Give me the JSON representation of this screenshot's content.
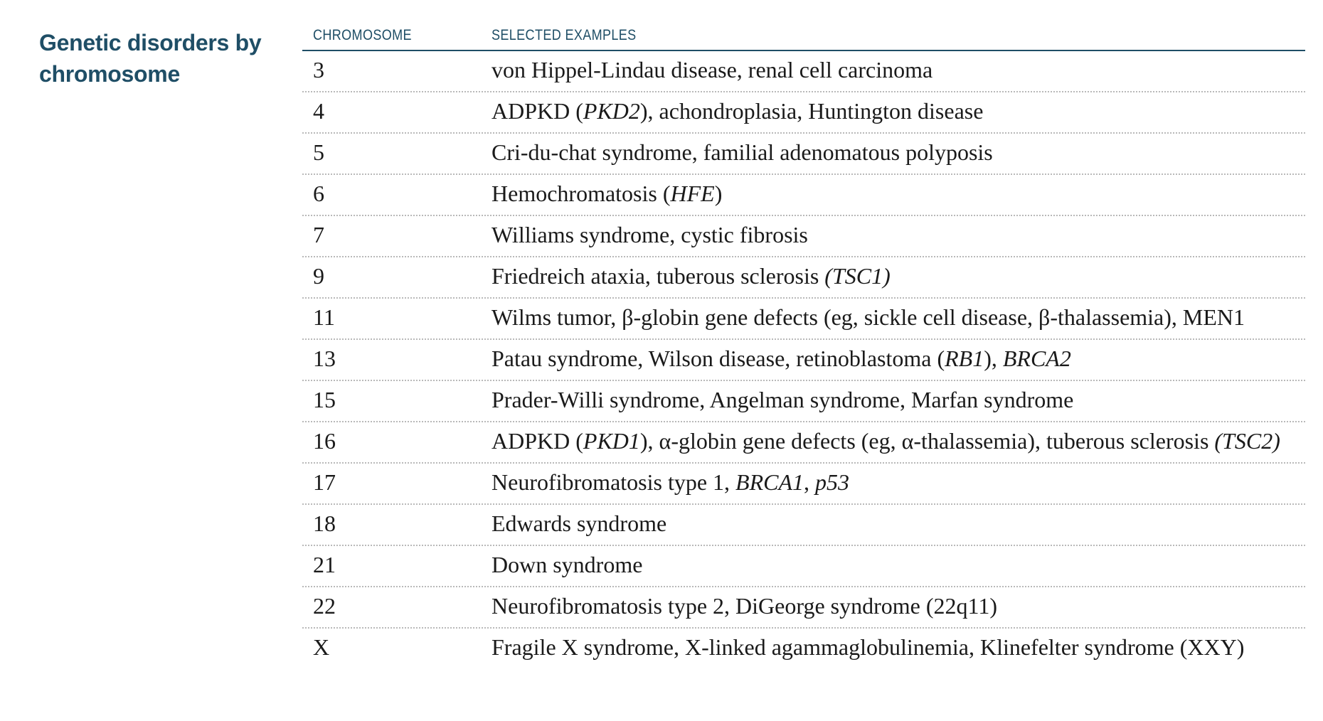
{
  "title": "Genetic disorders by chromosome",
  "headers": {
    "chromosome": "CHROMOSOME",
    "examples": "SELECTED EXAMPLES"
  },
  "rows": [
    {
      "chromosome": "3",
      "parts": [
        {
          "t": "von Hippel-Lindau disease, renal cell carcinoma"
        }
      ]
    },
    {
      "chromosome": "4",
      "parts": [
        {
          "t": "ADPKD ("
        },
        {
          "t": "PKD2",
          "i": true
        },
        {
          "t": "), achondroplasia, Huntington disease"
        }
      ]
    },
    {
      "chromosome": "5",
      "parts": [
        {
          "t": "Cri-du-chat syndrome, familial adenomatous polyposis"
        }
      ]
    },
    {
      "chromosome": "6",
      "parts": [
        {
          "t": "Hemochromatosis ("
        },
        {
          "t": "HFE",
          "i": true
        },
        {
          "t": ")"
        }
      ]
    },
    {
      "chromosome": "7",
      "parts": [
        {
          "t": "Williams syndrome, cystic fibrosis"
        }
      ]
    },
    {
      "chromosome": "9",
      "parts": [
        {
          "t": "Friedreich ataxia, tuberous sclerosis "
        },
        {
          "t": "(TSC1)",
          "i": true
        }
      ]
    },
    {
      "chromosome": "11",
      "parts": [
        {
          "t": "Wilms tumor, β-globin gene defects (eg, sickle cell disease, β-thalassemia), MEN1"
        }
      ]
    },
    {
      "chromosome": "13",
      "parts": [
        {
          "t": "Patau syndrome, Wilson disease, retinoblastoma ("
        },
        {
          "t": "RB1",
          "i": true
        },
        {
          "t": "), "
        },
        {
          "t": "BRCA2",
          "i": true
        }
      ]
    },
    {
      "chromosome": "15",
      "parts": [
        {
          "t": "Prader-Willi syndrome, Angelman syndrome, Marfan syndrome"
        }
      ]
    },
    {
      "chromosome": "16",
      "parts": [
        {
          "t": "ADPKD ("
        },
        {
          "t": "PKD1",
          "i": true
        },
        {
          "t": "), α-globin gene defects (eg, α-thalassemia), tuberous sclerosis "
        },
        {
          "t": "(TSC2)",
          "i": true
        }
      ]
    },
    {
      "chromosome": "17",
      "parts": [
        {
          "t": "Neurofibromatosis type 1, "
        },
        {
          "t": "BRCA1",
          "i": true
        },
        {
          "t": ", "
        },
        {
          "t": "p53",
          "i": true
        }
      ]
    },
    {
      "chromosome": "18",
      "parts": [
        {
          "t": "Edwards syndrome"
        }
      ]
    },
    {
      "chromosome": "21",
      "parts": [
        {
          "t": "Down syndrome"
        }
      ]
    },
    {
      "chromosome": "22",
      "parts": [
        {
          "t": "Neurofibromatosis type 2, DiGeorge syndrome (22q11)"
        }
      ]
    },
    {
      "chromosome": "X",
      "parts": [
        {
          "t": "Fragile X syndrome, X-linked agammaglobulinemia, Klinefelter syndrome (XXY)"
        }
      ]
    }
  ]
}
